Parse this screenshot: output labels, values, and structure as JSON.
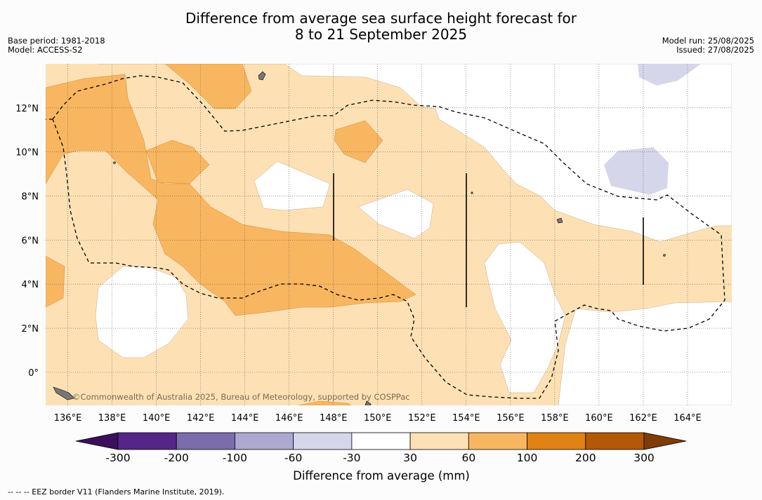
{
  "header": {
    "title_line1": "Difference from average sea surface height forecast for",
    "title_line2": "8 to 21 September 2025",
    "base_period": "Base period: 1981-2018",
    "model": "Model: ACCESS-S2",
    "model_run": "Model run: 25/08/2025",
    "issued": "Issued: 27/08/2025"
  },
  "credit": "©Commonwealth of Australia 2025, Bureau of Meteorology, supported by COSPPac",
  "footnote": "--  --  -- EEZ border V11 (Flanders Marine Institute, 2019).",
  "chart_data": {
    "type": "heatmap",
    "title": "Difference from average sea surface height forecast for 8 to 21 September 2025",
    "x_ticks": [
      "136°E",
      "138°E",
      "140°E",
      "142°E",
      "144°E",
      "146°E",
      "148°E",
      "150°E",
      "152°E",
      "154°E",
      "156°E",
      "158°E",
      "160°E",
      "162°E",
      "164°E"
    ],
    "x_tick_values": [
      136,
      138,
      140,
      142,
      144,
      146,
      148,
      150,
      152,
      154,
      156,
      158,
      160,
      162,
      164
    ],
    "y_ticks": [
      "0°",
      "2°N",
      "4°N",
      "6°N",
      "8°N",
      "10°N",
      "12°N"
    ],
    "y_tick_values": [
      0,
      2,
      4,
      6,
      8,
      10,
      12
    ],
    "xlim": [
      135,
      166
    ],
    "ylim": [
      -1.5,
      14
    ],
    "grid": true,
    "colorbar": {
      "label": "Difference from average (mm)",
      "tick_labels": [
        "-300",
        "-200",
        "-100",
        "-60",
        "-30",
        "30",
        "60",
        "100",
        "200",
        "300"
      ],
      "colors": [
        "#3b0f5c",
        "#552588",
        "#7b6cac",
        "#aca8d0",
        "#d6d6ea",
        "#ffffff",
        "#fde1b5",
        "#f9b660",
        "#e08214",
        "#b35806",
        "#7f3b08"
      ]
    },
    "legend": "bottom",
    "annotations": [
      "EEZ border (dashed line)"
    ]
  }
}
